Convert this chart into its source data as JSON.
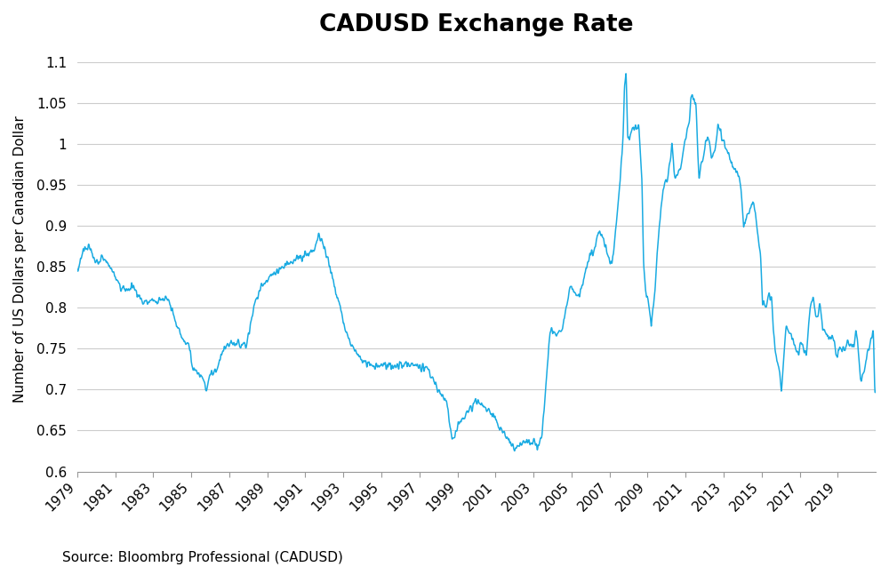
{
  "title": "CADUSD Exchange Rate",
  "ylabel": "Number of US Dollars per Canadian Dollar",
  "source_text": "Source: Bloombrg Professional (CADUSD)",
  "line_color": "#1AABE2",
  "background_color": "#FFFFFF",
  "ylim": [
    0.6,
    1.12
  ],
  "ytick_values": [
    0.6,
    0.65,
    0.7,
    0.75,
    0.8,
    0.85,
    0.9,
    0.95,
    1.0,
    1.05,
    1.1
  ],
  "ytick_labels": [
    "0.6",
    "0.65",
    "0.7",
    "0.75",
    "0.8",
    "0.85",
    "0.9",
    "0.95",
    "1",
    "1.05",
    "1.1"
  ],
  "x_tick_years": [
    1979,
    1981,
    1983,
    1985,
    1987,
    1989,
    1991,
    1993,
    1995,
    1997,
    1999,
    2001,
    2003,
    2005,
    2007,
    2009,
    2011,
    2013,
    2015,
    2017,
    2019
  ],
  "x_start_year": 1979,
  "x_end_year": 2020,
  "title_fontsize": 19,
  "ylabel_fontsize": 11,
  "tick_fontsize": 11,
  "source_fontsize": 11,
  "line_width": 1.1,
  "key_points": [
    [
      1979,
      1,
      0.845
    ],
    [
      1979,
      4,
      0.87
    ],
    [
      1979,
      8,
      0.875
    ],
    [
      1979,
      12,
      0.855
    ],
    [
      1980,
      4,
      0.862
    ],
    [
      1980,
      8,
      0.855
    ],
    [
      1980,
      12,
      0.84
    ],
    [
      1981,
      4,
      0.825
    ],
    [
      1981,
      8,
      0.822
    ],
    [
      1981,
      12,
      0.828
    ],
    [
      1982,
      4,
      0.812
    ],
    [
      1982,
      8,
      0.807
    ],
    [
      1982,
      12,
      0.81
    ],
    [
      1983,
      2,
      0.808
    ],
    [
      1983,
      6,
      0.812
    ],
    [
      1983,
      9,
      0.81
    ],
    [
      1983,
      12,
      0.8
    ],
    [
      1984,
      3,
      0.78
    ],
    [
      1984,
      6,
      0.768
    ],
    [
      1984,
      9,
      0.758
    ],
    [
      1984,
      12,
      0.75
    ],
    [
      1985,
      1,
      0.728
    ],
    [
      1985,
      5,
      0.72
    ],
    [
      1985,
      8,
      0.715
    ],
    [
      1985,
      10,
      0.7
    ],
    [
      1986,
      1,
      0.72
    ],
    [
      1986,
      5,
      0.725
    ],
    [
      1986,
      8,
      0.745
    ],
    [
      1986,
      12,
      0.754
    ],
    [
      1987,
      4,
      0.756
    ],
    [
      1987,
      8,
      0.756
    ],
    [
      1987,
      12,
      0.758
    ],
    [
      1988,
      4,
      0.8
    ],
    [
      1988,
      8,
      0.825
    ],
    [
      1988,
      12,
      0.832
    ],
    [
      1989,
      4,
      0.84
    ],
    [
      1989,
      8,
      0.847
    ],
    [
      1989,
      12,
      0.852
    ],
    [
      1990,
      4,
      0.858
    ],
    [
      1990,
      8,
      0.86
    ],
    [
      1990,
      12,
      0.862
    ],
    [
      1991,
      4,
      0.868
    ],
    [
      1991,
      7,
      0.876
    ],
    [
      1991,
      9,
      0.891
    ],
    [
      1992,
      1,
      0.87
    ],
    [
      1992,
      4,
      0.85
    ],
    [
      1992,
      8,
      0.82
    ],
    [
      1992,
      12,
      0.788
    ],
    [
      1993,
      3,
      0.768
    ],
    [
      1993,
      6,
      0.755
    ],
    [
      1993,
      9,
      0.745
    ],
    [
      1993,
      12,
      0.738
    ],
    [
      1994,
      3,
      0.732
    ],
    [
      1994,
      6,
      0.73
    ],
    [
      1994,
      9,
      0.73
    ],
    [
      1994,
      12,
      0.73
    ],
    [
      1995,
      3,
      0.73
    ],
    [
      1995,
      6,
      0.73
    ],
    [
      1995,
      9,
      0.73
    ],
    [
      1995,
      12,
      0.73
    ],
    [
      1996,
      3,
      0.73
    ],
    [
      1996,
      6,
      0.73
    ],
    [
      1996,
      9,
      0.73
    ],
    [
      1996,
      12,
      0.73
    ],
    [
      1997,
      3,
      0.726
    ],
    [
      1997,
      6,
      0.724
    ],
    [
      1997,
      9,
      0.714
    ],
    [
      1997,
      12,
      0.7
    ],
    [
      1998,
      3,
      0.692
    ],
    [
      1998,
      6,
      0.684
    ],
    [
      1998,
      8,
      0.65
    ],
    [
      1998,
      10,
      0.638
    ],
    [
      1999,
      1,
      0.655
    ],
    [
      1999,
      4,
      0.665
    ],
    [
      1999,
      7,
      0.672
    ],
    [
      1999,
      10,
      0.678
    ],
    [
      1999,
      12,
      0.685
    ],
    [
      2000,
      3,
      0.682
    ],
    [
      2000,
      6,
      0.679
    ],
    [
      2000,
      9,
      0.672
    ],
    [
      2000,
      12,
      0.668
    ],
    [
      2001,
      3,
      0.654
    ],
    [
      2001,
      6,
      0.648
    ],
    [
      2001,
      9,
      0.638
    ],
    [
      2001,
      12,
      0.628
    ],
    [
      2002,
      3,
      0.63
    ],
    [
      2002,
      5,
      0.635
    ],
    [
      2002,
      8,
      0.638
    ],
    [
      2002,
      12,
      0.635
    ],
    [
      2003,
      1,
      0.64
    ],
    [
      2003,
      3,
      0.63
    ],
    [
      2003,
      4,
      0.633
    ],
    [
      2003,
      6,
      0.645
    ],
    [
      2003,
      9,
      0.72
    ],
    [
      2003,
      11,
      0.77
    ],
    [
      2003,
      12,
      0.775
    ],
    [
      2004,
      3,
      0.768
    ],
    [
      2004,
      6,
      0.77
    ],
    [
      2004,
      9,
      0.8
    ],
    [
      2004,
      12,
      0.825
    ],
    [
      2005,
      3,
      0.82
    ],
    [
      2005,
      6,
      0.815
    ],
    [
      2005,
      9,
      0.845
    ],
    [
      2005,
      12,
      0.862
    ],
    [
      2006,
      3,
      0.87
    ],
    [
      2006,
      6,
      0.895
    ],
    [
      2006,
      9,
      0.885
    ],
    [
      2006,
      12,
      0.858
    ],
    [
      2007,
      1,
      0.855
    ],
    [
      2007,
      3,
      0.865
    ],
    [
      2007,
      5,
      0.905
    ],
    [
      2007,
      7,
      0.95
    ],
    [
      2007,
      9,
      1.0
    ],
    [
      2007,
      10,
      1.065
    ],
    [
      2007,
      11,
      1.09
    ],
    [
      2007,
      12,
      1.01
    ],
    [
      2008,
      1,
      1.005
    ],
    [
      2008,
      3,
      1.02
    ],
    [
      2008,
      5,
      1.02
    ],
    [
      2008,
      7,
      1.02
    ],
    [
      2008,
      9,
      0.96
    ],
    [
      2008,
      10,
      0.855
    ],
    [
      2008,
      11,
      0.828
    ],
    [
      2008,
      12,
      0.815
    ],
    [
      2009,
      1,
      0.808
    ],
    [
      2009,
      2,
      0.792
    ],
    [
      2009,
      3,
      0.778
    ],
    [
      2009,
      5,
      0.815
    ],
    [
      2009,
      7,
      0.875
    ],
    [
      2009,
      9,
      0.925
    ],
    [
      2009,
      11,
      0.948
    ],
    [
      2009,
      12,
      0.955
    ],
    [
      2010,
      1,
      0.958
    ],
    [
      2010,
      3,
      0.98
    ],
    [
      2010,
      4,
      1.002
    ],
    [
      2010,
      6,
      0.958
    ],
    [
      2010,
      8,
      0.965
    ],
    [
      2010,
      10,
      0.975
    ],
    [
      2010,
      12,
      1.002
    ],
    [
      2011,
      1,
      1.012
    ],
    [
      2011,
      3,
      1.03
    ],
    [
      2011,
      4,
      1.06
    ],
    [
      2011,
      5,
      1.055
    ],
    [
      2011,
      7,
      1.05
    ],
    [
      2011,
      9,
      0.958
    ],
    [
      2011,
      11,
      0.978
    ],
    [
      2011,
      12,
      0.982
    ],
    [
      2012,
      1,
      1.002
    ],
    [
      2012,
      3,
      1.01
    ],
    [
      2012,
      5,
      0.985
    ],
    [
      2012,
      7,
      0.992
    ],
    [
      2012,
      9,
      1.022
    ],
    [
      2012,
      11,
      1.015
    ],
    [
      2012,
      12,
      1.008
    ],
    [
      2013,
      1,
      1.005
    ],
    [
      2013,
      3,
      0.99
    ],
    [
      2013,
      5,
      0.98
    ],
    [
      2013,
      7,
      0.972
    ],
    [
      2013,
      9,
      0.97
    ],
    [
      2013,
      11,
      0.952
    ],
    [
      2013,
      12,
      0.938
    ],
    [
      2014,
      1,
      0.9
    ],
    [
      2014,
      3,
      0.908
    ],
    [
      2014,
      5,
      0.92
    ],
    [
      2014,
      7,
      0.93
    ],
    [
      2014,
      9,
      0.91
    ],
    [
      2014,
      11,
      0.875
    ],
    [
      2014,
      12,
      0.858
    ],
    [
      2015,
      1,
      0.808
    ],
    [
      2015,
      3,
      0.8
    ],
    [
      2015,
      5,
      0.815
    ],
    [
      2015,
      7,
      0.808
    ],
    [
      2015,
      9,
      0.748
    ],
    [
      2015,
      11,
      0.73
    ],
    [
      2015,
      12,
      0.72
    ],
    [
      2016,
      1,
      0.694
    ],
    [
      2016,
      2,
      0.725
    ],
    [
      2016,
      4,
      0.778
    ],
    [
      2016,
      6,
      0.77
    ],
    [
      2016,
      8,
      0.765
    ],
    [
      2016,
      10,
      0.752
    ],
    [
      2016,
      12,
      0.745
    ],
    [
      2017,
      1,
      0.758
    ],
    [
      2017,
      3,
      0.75
    ],
    [
      2017,
      5,
      0.745
    ],
    [
      2017,
      7,
      0.798
    ],
    [
      2017,
      9,
      0.812
    ],
    [
      2017,
      11,
      0.785
    ],
    [
      2017,
      12,
      0.79
    ],
    [
      2018,
      1,
      0.808
    ],
    [
      2018,
      3,
      0.778
    ],
    [
      2018,
      5,
      0.77
    ],
    [
      2018,
      7,
      0.762
    ],
    [
      2018,
      9,
      0.768
    ],
    [
      2018,
      11,
      0.752
    ],
    [
      2018,
      12,
      0.738
    ],
    [
      2019,
      1,
      0.75
    ],
    [
      2019,
      3,
      0.748
    ],
    [
      2019,
      5,
      0.748
    ],
    [
      2019,
      7,
      0.758
    ],
    [
      2019,
      9,
      0.755
    ],
    [
      2019,
      11,
      0.755
    ],
    [
      2019,
      12,
      0.77
    ],
    [
      2020,
      1,
      0.76
    ],
    [
      2020,
      3,
      0.708
    ],
    [
      2020,
      5,
      0.722
    ],
    [
      2020,
      7,
      0.74
    ],
    [
      2020,
      9,
      0.755
    ],
    [
      2020,
      11,
      0.775
    ],
    [
      2020,
      12,
      0.7
    ]
  ]
}
